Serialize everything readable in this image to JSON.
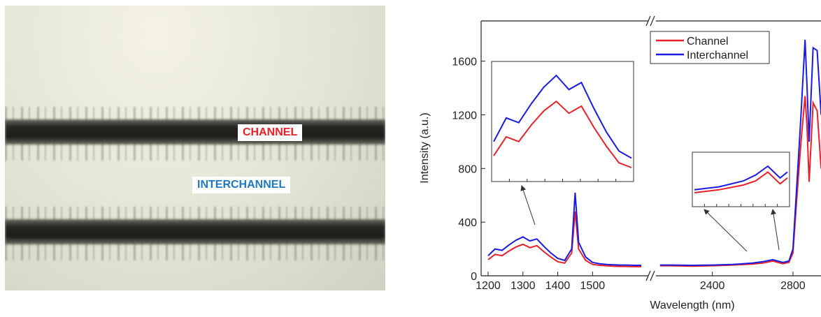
{
  "photo": {
    "labels": [
      {
        "text": "CHANNEL",
        "color": "#e8202a"
      },
      {
        "text": "INTERCHANNEL",
        "color": "#1f78c0"
      }
    ]
  },
  "chart_data": {
    "type": "line",
    "xlabel": "Wavelength (nm)",
    "ylabel": "Intensity (a.u.)",
    "segments": [
      {
        "xlim": [
          1180,
          1660
        ],
        "xticks": [
          1200,
          1300,
          1400,
          1500
        ]
      },
      {
        "xlim": [
          2120,
          2960
        ],
        "xticks": [
          2400,
          2800
        ]
      }
    ],
    "ylim": [
      0,
      1900
    ],
    "yticks": [
      0,
      400,
      800,
      1200,
      1600
    ],
    "x": [
      1200,
      1220,
      1240,
      1260,
      1280,
      1300,
      1320,
      1340,
      1360,
      1380,
      1400,
      1420,
      1440,
      1450,
      1460,
      1480,
      1500,
      1520,
      1540,
      1560,
      1580,
      1600,
      1620,
      1640,
      2140,
      2200,
      2300,
      2400,
      2500,
      2600,
      2650,
      2700,
      2750,
      2780,
      2800,
      2820,
      2840,
      2860,
      2870,
      2880,
      2900,
      2920,
      2940
    ],
    "series": [
      {
        "name": "Channel",
        "color": "#e8202a",
        "values": [
          120,
          160,
          150,
          185,
          215,
          235,
          210,
          225,
          180,
          140,
          105,
          95,
          170,
          480,
          200,
          115,
          85,
          78,
          75,
          72,
          70,
          70,
          68,
          68,
          75,
          75,
          72,
          75,
          80,
          88,
          95,
          110,
          90,
          100,
          170,
          600,
          1000,
          1340,
          1100,
          700,
          1290,
          1230,
          800
        ]
      },
      {
        "name": "Interchannel",
        "color": "#1a1ae0",
        "values": [
          150,
          200,
          190,
          230,
          265,
          290,
          260,
          275,
          220,
          170,
          130,
          115,
          200,
          620,
          250,
          140,
          100,
          90,
          85,
          82,
          80,
          80,
          78,
          78,
          80,
          80,
          78,
          80,
          85,
          95,
          105,
          120,
          100,
          110,
          200,
          700,
          1200,
          1760,
          1400,
          1000,
          1700,
          1680,
          1200
        ]
      }
    ],
    "legend": "upper right"
  }
}
